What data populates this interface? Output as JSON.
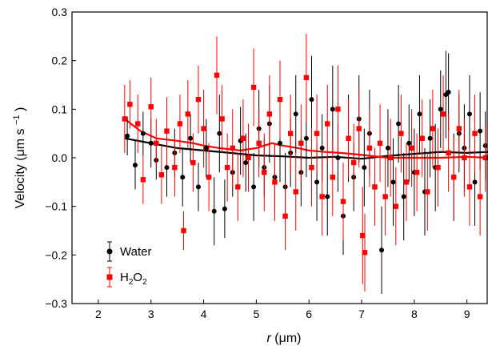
{
  "chart_data": {
    "type": "scatter",
    "xlabel_var": "r",
    "xlabel_unit": "(μm)",
    "ylabel": "Velocity (μm s",
    "ylabel_sup": "−1",
    "ylabel_close": ")",
    "xlim": [
      1.5,
      9.4
    ],
    "ylim": [
      -0.3,
      0.3
    ],
    "xticks": [
      2,
      3,
      4,
      5,
      6,
      7,
      8,
      9
    ],
    "yticks": [
      -0.3,
      -0.2,
      -0.1,
      0.0,
      0.1,
      0.2,
      0.3
    ],
    "ytick_labels": [
      "−0.3",
      "−0.2",
      "−0.1",
      "0.0",
      "0.1",
      "0.2",
      "0.3"
    ],
    "legend_position": "bottom-left",
    "grid": false,
    "series": [
      {
        "name": "Water",
        "color": "#000000",
        "marker": "circle",
        "points": [
          [
            2.55,
            0.045,
            0.04
          ],
          [
            2.7,
            -0.015,
            0.05
          ],
          [
            2.85,
            0.05,
            0.045
          ],
          [
            3.0,
            0.03,
            0.05
          ],
          [
            3.1,
            -0.005,
            0.04
          ],
          [
            3.3,
            -0.02,
            0.06
          ],
          [
            3.45,
            0.01,
            0.05
          ],
          [
            3.6,
            -0.04,
            0.06
          ],
          [
            3.75,
            0.04,
            0.05
          ],
          [
            3.9,
            -0.06,
            0.05
          ],
          [
            4.05,
            0.02,
            0.06
          ],
          [
            4.2,
            -0.11,
            0.07
          ],
          [
            4.3,
            0.05,
            0.08
          ],
          [
            4.4,
            -0.105,
            0.06
          ],
          [
            4.55,
            -0.03,
            0.05
          ],
          [
            4.7,
            0.035,
            0.07
          ],
          [
            4.8,
            -0.01,
            0.06
          ],
          [
            4.95,
            -0.06,
            0.07
          ],
          [
            5.05,
            0.06,
            0.08
          ],
          [
            5.15,
            -0.02,
            0.06
          ],
          [
            5.25,
            0.07,
            0.08
          ],
          [
            5.35,
            -0.04,
            0.07
          ],
          [
            5.45,
            0.03,
            0.08
          ],
          [
            5.55,
            -0.06,
            0.07
          ],
          [
            5.65,
            0.01,
            0.07
          ],
          [
            5.75,
            0.09,
            0.08
          ],
          [
            5.85,
            -0.03,
            0.07
          ],
          [
            5.95,
            0.04,
            0.08
          ],
          [
            6.05,
            0.12,
            0.09
          ],
          [
            6.15,
            -0.05,
            0.08
          ],
          [
            6.25,
            0.02,
            0.07
          ],
          [
            6.35,
            -0.08,
            0.08
          ],
          [
            6.45,
            0.1,
            0.09
          ],
          [
            6.55,
            0.0,
            0.07
          ],
          [
            6.65,
            -0.12,
            0.08
          ],
          [
            6.75,
            0.04,
            0.09
          ],
          [
            6.85,
            -0.04,
            0.07
          ],
          [
            6.95,
            0.08,
            0.09
          ],
          [
            7.05,
            -0.02,
            0.08
          ],
          [
            7.15,
            0.05,
            0.09
          ],
          [
            7.25,
            -0.06,
            0.08
          ],
          [
            7.38,
            -0.19,
            0.09
          ],
          [
            7.5,
            0.02,
            0.08
          ],
          [
            7.6,
            -0.05,
            0.09
          ],
          [
            7.7,
            0.07,
            0.08
          ],
          [
            7.8,
            -0.08,
            0.09
          ],
          [
            7.9,
            0.03,
            0.08
          ],
          [
            8.0,
            -0.03,
            0.09
          ],
          [
            8.1,
            0.09,
            0.08
          ],
          [
            8.2,
            -0.07,
            0.09
          ],
          [
            8.3,
            0.04,
            0.08
          ],
          [
            8.4,
            -0.02,
            0.09
          ],
          [
            8.5,
            0.1,
            0.08
          ],
          [
            8.6,
            0.13,
            0.09
          ],
          [
            8.65,
            0.135,
            0.08
          ],
          [
            8.75,
            -0.04,
            0.09
          ],
          [
            8.85,
            0.05,
            0.08
          ],
          [
            8.95,
            0.02,
            0.09
          ],
          [
            9.05,
            0.09,
            0.08
          ],
          [
            9.15,
            -0.05,
            0.09
          ],
          [
            9.25,
            0.055,
            0.08
          ],
          [
            9.35,
            0.025,
            0.07
          ]
        ],
        "avg_line": [
          [
            2.5,
            0.04
          ],
          [
            3.0,
            0.03
          ],
          [
            3.5,
            0.02
          ],
          [
            4.0,
            0.015
          ],
          [
            4.5,
            0.01
          ],
          [
            5.0,
            0.005
          ],
          [
            5.5,
            0.003
          ],
          [
            6.0,
            0.0
          ],
          [
            6.5,
            0.002
          ],
          [
            7.0,
            -0.002
          ],
          [
            7.5,
            0.004
          ],
          [
            8.0,
            0.008
          ],
          [
            8.5,
            0.012
          ],
          [
            9.0,
            0.01
          ],
          [
            9.4,
            0.012
          ]
        ]
      },
      {
        "name": "H2O2",
        "legend_main": "H",
        "legend_sub1": "2",
        "legend_mid": "O",
        "legend_sub2": "2",
        "color": "#ff0000",
        "marker": "square",
        "points": [
          [
            2.5,
            0.08,
            0.07
          ],
          [
            2.6,
            0.11,
            0.05
          ],
          [
            2.75,
            0.07,
            0.06
          ],
          [
            2.85,
            -0.045,
            0.05
          ],
          [
            3.0,
            0.105,
            0.06
          ],
          [
            3.1,
            0.03,
            0.05
          ],
          [
            3.2,
            -0.035,
            0.06
          ],
          [
            3.3,
            0.055,
            0.07
          ],
          [
            3.45,
            -0.02,
            0.06
          ],
          [
            3.55,
            0.07,
            0.06
          ],
          [
            3.62,
            -0.15,
            0.04
          ],
          [
            3.7,
            0.09,
            0.07
          ],
          [
            3.8,
            -0.01,
            0.06
          ],
          [
            3.9,
            0.12,
            0.07
          ],
          [
            4.0,
            0.06,
            0.08
          ],
          [
            4.1,
            -0.04,
            0.07
          ],
          [
            4.25,
            0.17,
            0.08
          ],
          [
            4.35,
            0.08,
            0.07
          ],
          [
            4.45,
            -0.02,
            0.07
          ],
          [
            4.55,
            0.02,
            0.08
          ],
          [
            4.65,
            -0.06,
            0.07
          ],
          [
            4.75,
            0.04,
            0.08
          ],
          [
            4.85,
            0.0,
            0.07
          ],
          [
            4.95,
            0.145,
            0.08
          ],
          [
            5.05,
            0.03,
            0.07
          ],
          [
            5.15,
            -0.03,
            0.08
          ],
          [
            5.25,
            0.09,
            0.08
          ],
          [
            5.35,
            -0.05,
            0.08
          ],
          [
            5.45,
            0.12,
            0.08
          ],
          [
            5.55,
            -0.12,
            0.07
          ],
          [
            5.65,
            0.05,
            0.08
          ],
          [
            5.75,
            -0.07,
            0.08
          ],
          [
            5.85,
            0.03,
            0.08
          ],
          [
            5.95,
            0.165,
            0.09
          ],
          [
            6.05,
            -0.02,
            0.08
          ],
          [
            6.15,
            0.05,
            0.08
          ],
          [
            6.25,
            -0.08,
            0.08
          ],
          [
            6.35,
            0.07,
            0.08
          ],
          [
            6.45,
            -0.04,
            0.08
          ],
          [
            6.55,
            0.1,
            0.09
          ],
          [
            6.65,
            -0.09,
            0.08
          ],
          [
            6.75,
            0.04,
            0.08
          ],
          [
            6.85,
            -0.01,
            0.08
          ],
          [
            6.95,
            0.06,
            0.08
          ],
          [
            7.02,
            -0.16,
            0.1
          ],
          [
            7.06,
            -0.195,
            0.08
          ],
          [
            7.15,
            0.02,
            0.08
          ],
          [
            7.25,
            -0.06,
            0.08
          ],
          [
            7.35,
            0.03,
            0.08
          ],
          [
            7.45,
            -0.08,
            0.08
          ],
          [
            7.55,
            0.0,
            0.08
          ],
          [
            7.65,
            -0.1,
            0.08
          ],
          [
            7.75,
            0.05,
            0.08
          ],
          [
            7.85,
            -0.05,
            0.08
          ],
          [
            7.95,
            0.02,
            0.08
          ],
          [
            8.05,
            -0.03,
            0.08
          ],
          [
            8.15,
            0.04,
            0.08
          ],
          [
            8.25,
            -0.07,
            0.08
          ],
          [
            8.35,
            0.06,
            0.08
          ],
          [
            8.45,
            -0.02,
            0.08
          ],
          [
            8.55,
            0.09,
            0.08
          ],
          [
            8.65,
            0.01,
            0.08
          ],
          [
            8.75,
            -0.04,
            0.08
          ],
          [
            8.85,
            0.06,
            0.08
          ],
          [
            8.95,
            0.0,
            0.08
          ],
          [
            9.05,
            -0.06,
            0.08
          ],
          [
            9.15,
            0.05,
            0.08
          ],
          [
            9.25,
            -0.08,
            0.08
          ],
          [
            9.35,
            0.0,
            0.07
          ]
        ],
        "avg_line": [
          [
            2.5,
            0.08
          ],
          [
            2.8,
            0.055
          ],
          [
            3.1,
            0.04
          ],
          [
            3.5,
            0.035
          ],
          [
            3.8,
            0.03
          ],
          [
            4.0,
            0.025
          ],
          [
            4.3,
            0.02
          ],
          [
            4.7,
            0.015
          ],
          [
            5.0,
            0.02
          ],
          [
            5.3,
            0.03
          ],
          [
            5.5,
            0.025
          ],
          [
            5.8,
            0.02
          ],
          [
            6.0,
            0.015
          ],
          [
            6.3,
            0.012
          ],
          [
            6.6,
            0.01
          ],
          [
            7.0,
            0.006
          ],
          [
            7.5,
            0.0
          ],
          [
            8.0,
            0.0
          ],
          [
            8.5,
            0.0
          ],
          [
            9.0,
            0.002
          ],
          [
            9.4,
            0.0
          ]
        ]
      }
    ]
  }
}
